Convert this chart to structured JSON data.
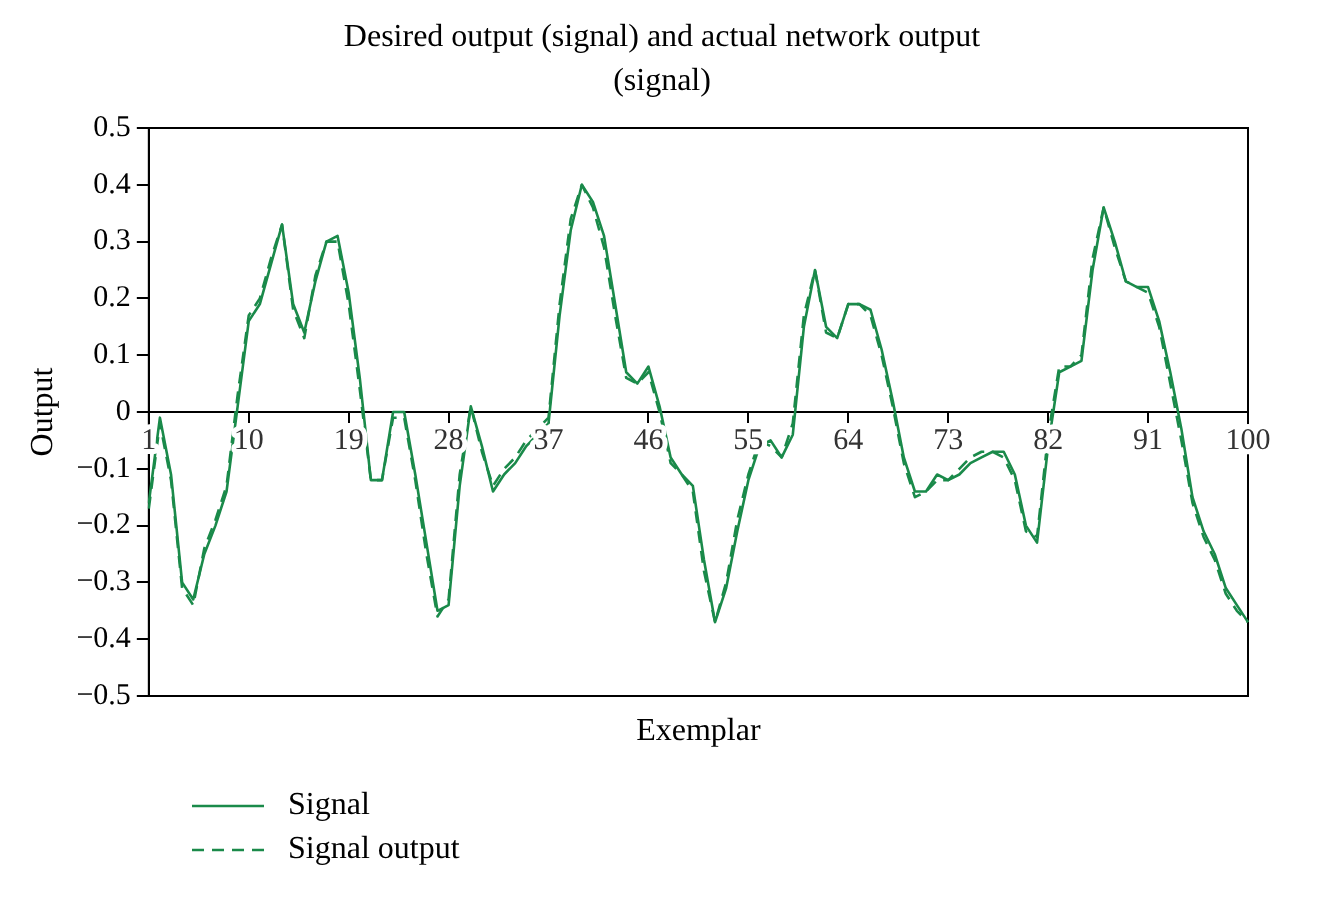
{
  "chart_data": {
    "type": "line",
    "title": "Desired output (signal) and actual network output (signal)",
    "xlabel": "Exemplar",
    "ylabel": "Output",
    "categories": [
      "1",
      null,
      null,
      null,
      null,
      null,
      null,
      null,
      null,
      "10",
      null,
      null,
      null,
      null,
      null,
      null,
      null,
      null,
      "19",
      null,
      null,
      null,
      null,
      null,
      null,
      null,
      null,
      "28",
      null,
      null,
      null,
      null,
      null,
      null,
      null,
      null,
      "37",
      null,
      null,
      null,
      null,
      null,
      null,
      null,
      null,
      "46",
      null,
      null,
      null,
      null,
      null,
      null,
      null,
      null,
      "55",
      null,
      null,
      null,
      null,
      null,
      null,
      null,
      null,
      "64",
      null,
      null,
      null,
      null,
      null,
      null,
      null,
      null,
      "73",
      null,
      null,
      null,
      null,
      null,
      null,
      null,
      null,
      "82",
      null,
      null,
      null,
      null,
      null,
      null,
      null,
      null,
      "91",
      null,
      null,
      null,
      null,
      null,
      null,
      null,
      null,
      "100"
    ],
    "series": [
      {
        "name": "Signal",
        "color": "#1a8a4a",
        "line_style": "solid",
        "values": [
          -0.16,
          -0.01,
          -0.11,
          -0.3,
          -0.33,
          -0.25,
          -0.2,
          -0.14,
          0.01,
          0.16,
          0.19,
          0.26,
          0.33,
          0.19,
          0.14,
          0.23,
          0.3,
          0.31,
          0.21,
          0.06,
          -0.12,
          -0.12,
          0,
          0,
          -0.11,
          -0.23,
          -0.35,
          -0.34,
          -0.13,
          0.01,
          -0.06,
          -0.14,
          -0.11,
          -0.09,
          -0.06,
          -0.04,
          -0.02,
          0.17,
          0.32,
          0.4,
          0.37,
          0.31,
          0.19,
          0.07,
          0.05,
          0.08,
          0.01,
          -0.08,
          -0.11,
          -0.13,
          -0.26,
          -0.37,
          -0.31,
          -0.21,
          -0.12,
          -0.06,
          -0.05,
          -0.08,
          -0.04,
          0.15,
          0.25,
          0.15,
          0.13,
          0.19,
          0.19,
          0.18,
          0.11,
          0.02,
          -0.08,
          -0.14,
          -0.14,
          -0.11,
          -0.12,
          -0.11,
          -0.09,
          -0.08,
          -0.07,
          -0.07,
          -0.11,
          -0.2,
          -0.23,
          -0.06,
          0.07,
          0.08,
          0.09,
          0.25,
          0.36,
          0.3,
          0.23,
          0.22,
          0.22,
          0.16,
          0.07,
          -0.03,
          -0.15,
          -0.21,
          -0.25,
          -0.31,
          -0.34,
          -0.37
        ]
      },
      {
        "name": "Signal output",
        "color": "#1a8a4a",
        "line_style": "dashed",
        "values": [
          -0.17,
          -0.02,
          -0.12,
          -0.31,
          -0.34,
          -0.24,
          -0.19,
          -0.13,
          0.03,
          0.17,
          0.2,
          0.27,
          0.33,
          0.18,
          0.13,
          0.24,
          0.3,
          0.3,
          0.19,
          0.04,
          -0.12,
          -0.12,
          -0.01,
          -0.01,
          -0.12,
          -0.25,
          -0.36,
          -0.33,
          -0.11,
          0.01,
          -0.07,
          -0.13,
          -0.1,
          -0.08,
          -0.05,
          -0.03,
          -0.01,
          0.19,
          0.34,
          0.4,
          0.36,
          0.29,
          0.17,
          0.06,
          0.05,
          0.07,
          0,
          -0.09,
          -0.11,
          -0.14,
          -0.28,
          -0.37,
          -0.3,
          -0.19,
          -0.11,
          -0.05,
          -0.06,
          -0.08,
          -0.02,
          0.17,
          0.25,
          0.14,
          0.13,
          0.19,
          0.19,
          0.17,
          0.1,
          0.01,
          -0.09,
          -0.15,
          -0.14,
          -0.12,
          -0.12,
          -0.1,
          -0.08,
          -0.07,
          -0.07,
          -0.08,
          -0.12,
          -0.21,
          -0.22,
          -0.04,
          0.08,
          0.08,
          0.1,
          0.27,
          0.36,
          0.29,
          0.23,
          0.22,
          0.21,
          0.15,
          0.05,
          -0.05,
          -0.16,
          -0.22,
          -0.26,
          -0.32,
          -0.35,
          -0.37
        ]
      }
    ],
    "ylim": [
      -0.5,
      0.5
    ],
    "yticks": [
      {
        "value": -0.5,
        "label": "−0.5"
      },
      {
        "value": -0.4,
        "label": "−0.4"
      },
      {
        "value": -0.3,
        "label": "−0.3"
      },
      {
        "value": -0.2,
        "label": "−0.2"
      },
      {
        "value": -0.1,
        "label": "−0.1"
      },
      0,
      0.1,
      0.2,
      0.3,
      0.4,
      0.5
    ],
    "grid": false,
    "legend": "bottom left",
    "marker": "none"
  }
}
